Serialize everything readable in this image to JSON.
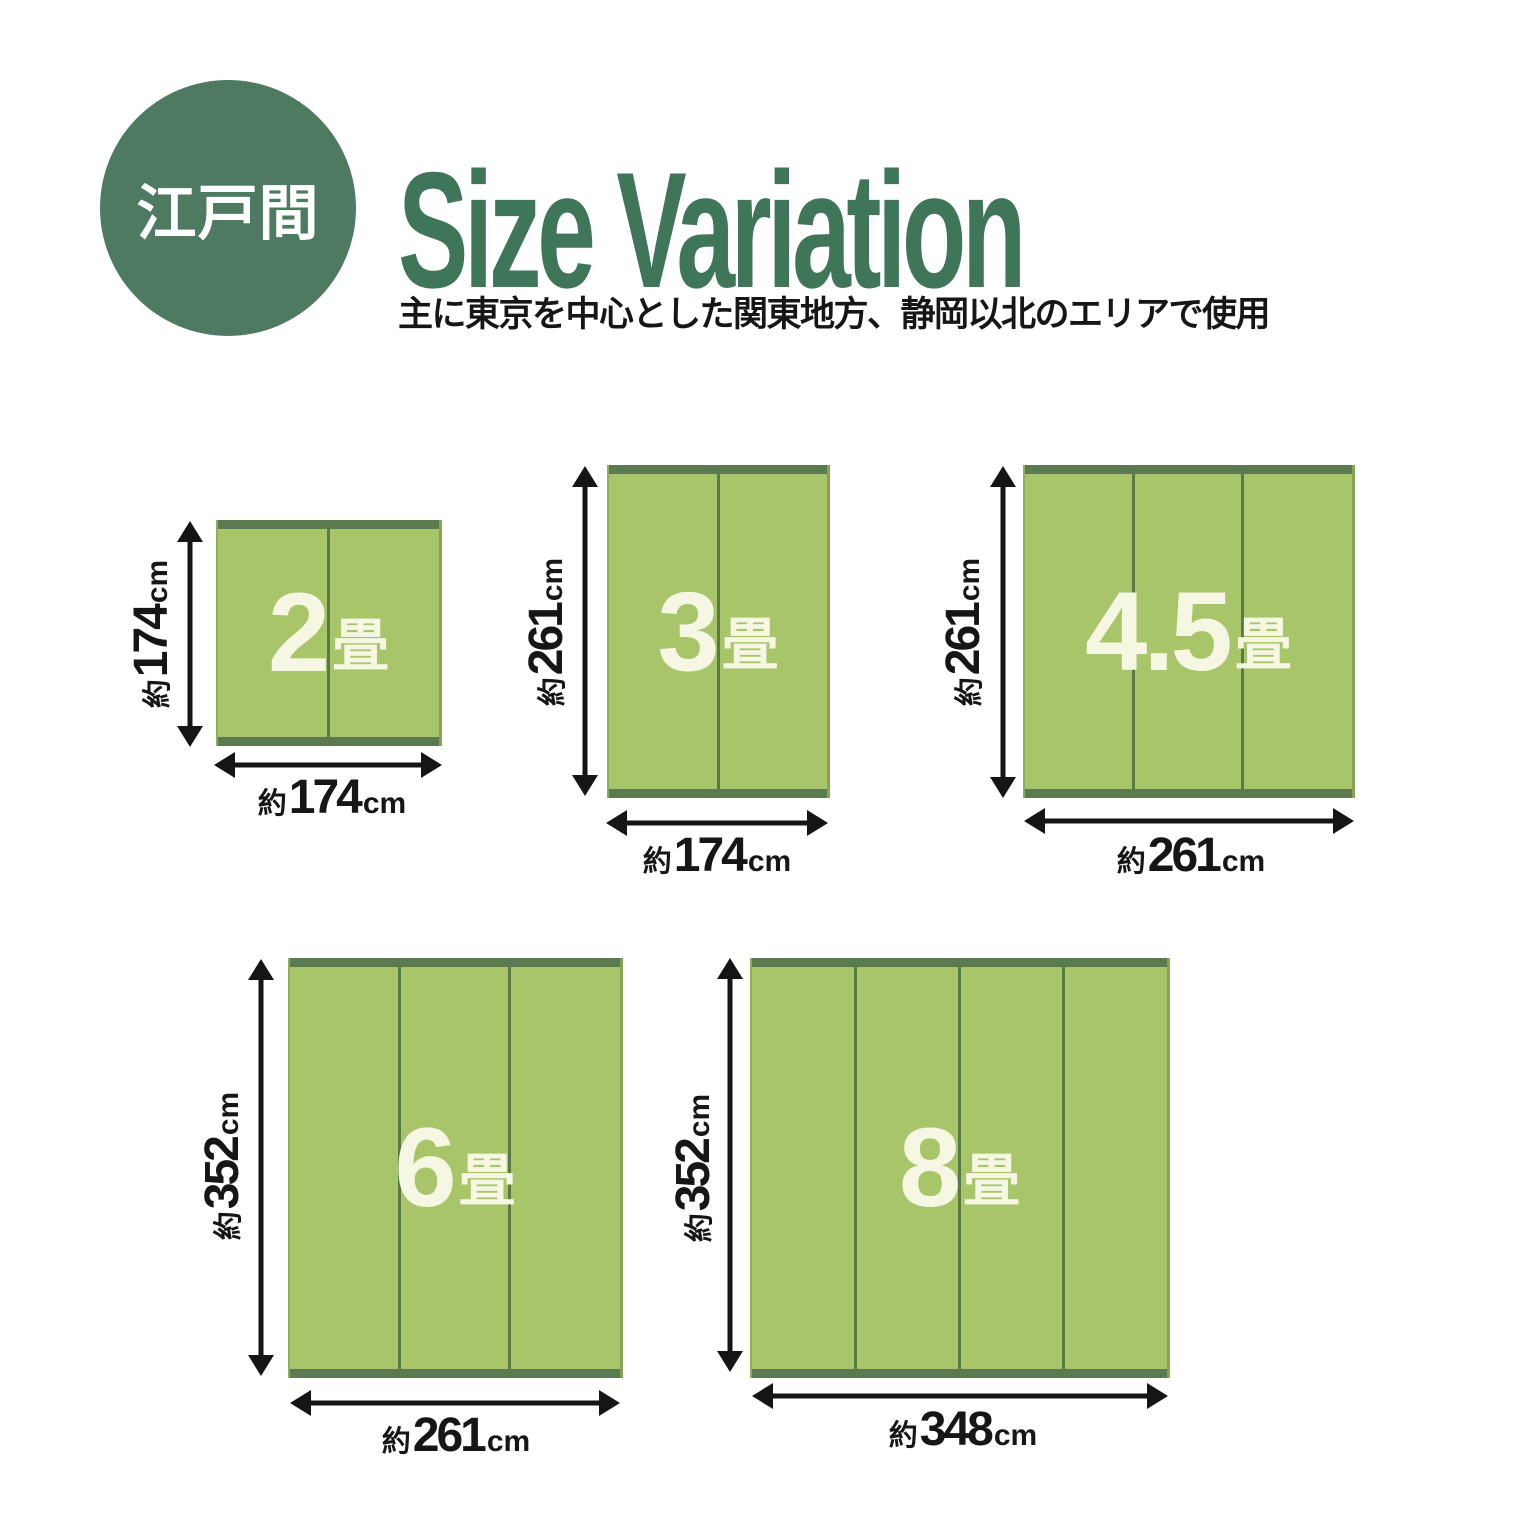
{
  "header": {
    "badge": "江戸間",
    "title": "Size Variation",
    "subtitle": "主に東京を中心とした関東地方、静岡以北のエリアで使用"
  },
  "colors": {
    "badge_bg": "#4e7a62",
    "title_color": "#3f7659",
    "ink": "#161616",
    "mat_fill": "#a9c56a",
    "mat_edge": "#5c7a50",
    "mat_divider": "#5a7a45",
    "mat_label": "#f5f7e3"
  },
  "sizes": [
    {
      "label": "2畳",
      "number": "2",
      "unit": "畳",
      "panels": 2,
      "width": {
        "approx": "約",
        "value": "174",
        "unit": "cm"
      },
      "height": {
        "approx": "約",
        "value": "174",
        "unit": "cm"
      }
    },
    {
      "label": "3畳",
      "number": "3",
      "unit": "畳",
      "panels": 2,
      "width": {
        "approx": "約",
        "value": "174",
        "unit": "cm"
      },
      "height": {
        "approx": "約",
        "value": "261",
        "unit": "cm"
      }
    },
    {
      "label": "4.5畳",
      "number": "4.5",
      "unit": "畳",
      "panels": 3,
      "width": {
        "approx": "約",
        "value": "261",
        "unit": "cm"
      },
      "height": {
        "approx": "約",
        "value": "261",
        "unit": "cm"
      }
    },
    {
      "label": "6畳",
      "number": "6",
      "unit": "畳",
      "panels": 3,
      "width": {
        "approx": "約",
        "value": "261",
        "unit": "cm"
      },
      "height": {
        "approx": "約",
        "value": "352",
        "unit": "cm"
      }
    },
    {
      "label": "8畳",
      "number": "8",
      "unit": "畳",
      "panels": 4,
      "width": {
        "approx": "約",
        "value": "348",
        "unit": "cm"
      },
      "height": {
        "approx": "約",
        "value": "352",
        "unit": "cm"
      }
    }
  ]
}
